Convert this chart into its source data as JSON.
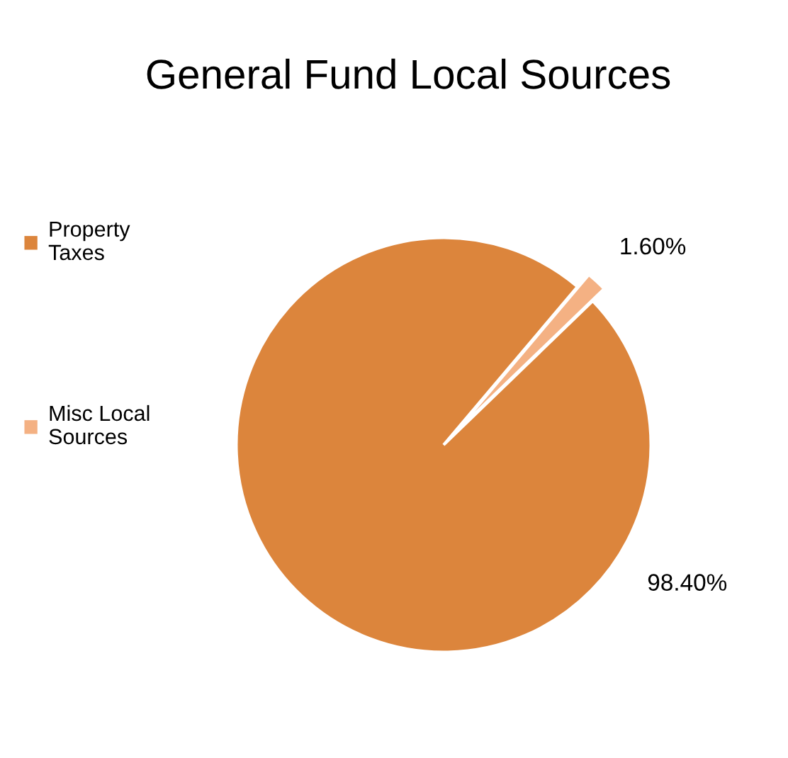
{
  "chart_data": {
    "type": "pie",
    "title": "General Fund Local Sources",
    "categories": [
      "Property Taxes",
      "Misc Local Sources"
    ],
    "values": [
      98.4,
      1.6
    ],
    "colors": [
      "#dc853c",
      "#f4b183"
    ],
    "value_labels": [
      "98.40%",
      "1.60%"
    ],
    "legend": "left"
  }
}
